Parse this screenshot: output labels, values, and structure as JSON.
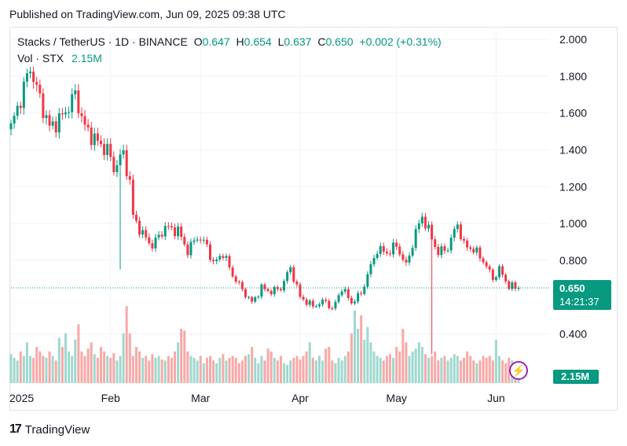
{
  "header": {
    "published": "Published on TradingView.com, Jun 09, 2025 09:38 UTC"
  },
  "legend": {
    "symbol": "Stacks / TetherUS · 1D · BINANCE",
    "o_label": "O",
    "o_value": "0.647",
    "h_label": "H",
    "h_value": "0.654",
    "l_label": "L",
    "l_value": "0.637",
    "c_label": "C",
    "c_value": "0.650",
    "change": "+0.002 (+0.31%)",
    "vol_label": "Vol · STX",
    "vol_value": "2.15M"
  },
  "price_badge": {
    "price": "0.650",
    "countdown": "14:21:37"
  },
  "vol_badge": "2.15M",
  "footer": {
    "brand": "TradingView"
  },
  "colors": {
    "up": "#089981",
    "down": "#f23645",
    "up_vol": "#9fd8cf",
    "down_vol": "#f7a9a7"
  },
  "chart_data": {
    "type": "candlestick",
    "title": "Stacks / TetherUS · 1D · BINANCE",
    "y_ticks": [
      "2.000",
      "1.800",
      "1.600",
      "1.400",
      "1.200",
      "1.000",
      "0.800",
      "0.400"
    ],
    "y_tick_values": [
      2.0,
      1.8,
      1.6,
      1.4,
      1.2,
      1.0,
      0.8,
      0.4
    ],
    "ylim": [
      0.206,
      2.0
    ],
    "x_ticks": [
      "2025",
      "Feb",
      "Mar",
      "Apr",
      "May",
      "Jun"
    ],
    "last_price": 0.65,
    "path_points": [
      [
        0,
        1.52
      ],
      [
        3,
        1.68
      ],
      [
        6,
        1.85
      ],
      [
        8,
        1.73
      ],
      [
        12,
        1.52
      ],
      [
        16,
        1.58
      ],
      [
        20,
        1.7
      ],
      [
        23,
        1.52
      ],
      [
        27,
        1.44
      ],
      [
        30,
        1.4
      ],
      [
        32,
        1.3
      ],
      [
        35,
        1.38
      ],
      [
        37,
        1.22
      ],
      [
        38,
        1.04
      ],
      [
        41,
        0.94
      ],
      [
        44,
        0.88
      ],
      [
        48,
        0.98
      ],
      [
        52,
        0.96
      ],
      [
        55,
        0.85
      ],
      [
        58,
        0.93
      ],
      [
        61,
        0.88
      ],
      [
        63,
        0.78
      ],
      [
        66,
        0.84
      ],
      [
        69,
        0.72
      ],
      [
        72,
        0.64
      ],
      [
        75,
        0.57
      ],
      [
        78,
        0.65
      ],
      [
        81,
        0.63
      ],
      [
        84,
        0.65
      ],
      [
        87,
        0.76
      ],
      [
        90,
        0.6
      ],
      [
        94,
        0.55
      ],
      [
        98,
        0.58
      ],
      [
        100,
        0.53
      ],
      [
        103,
        0.65
      ],
      [
        106,
        0.57
      ],
      [
        109,
        0.62
      ],
      [
        111,
        0.72
      ],
      [
        114,
        0.86
      ],
      [
        117,
        0.84
      ],
      [
        120,
        0.88
      ],
      [
        123,
        0.77
      ],
      [
        126,
        0.95
      ],
      [
        128,
        1.04
      ],
      [
        130,
        0.96
      ],
      [
        133,
        0.84
      ],
      [
        136,
        0.87
      ],
      [
        139,
        1.0
      ],
      [
        141,
        0.88
      ],
      [
        144,
        0.86
      ],
      [
        147,
        0.8
      ],
      [
        150,
        0.7
      ],
      [
        152,
        0.75
      ],
      [
        155,
        0.66
      ],
      [
        158,
        0.65
      ]
    ],
    "spikes": [
      {
        "day": 34,
        "low": 0.75
      },
      {
        "day": 131,
        "low": 0.29
      }
    ],
    "volume": {
      "max_label": "2.15M",
      "values": [
        0.32,
        0.28,
        0.25,
        0.35,
        0.3,
        0.45,
        0.3,
        0.28,
        0.4,
        0.35,
        0.3,
        0.28,
        0.35,
        0.3,
        0.25,
        0.5,
        0.4,
        0.55,
        0.35,
        0.3,
        0.48,
        0.65,
        0.35,
        0.3,
        0.38,
        0.45,
        0.32,
        0.28,
        0.4,
        0.35,
        0.3,
        0.28,
        0.33,
        0.25,
        0.3,
        0.55,
        0.85,
        0.55,
        0.3,
        0.4,
        0.35,
        0.28,
        0.3,
        0.25,
        0.32,
        0.28,
        0.3,
        0.26,
        0.25,
        0.3,
        0.28,
        0.35,
        0.45,
        0.6,
        0.58,
        0.35,
        0.3,
        0.28,
        0.25,
        0.3,
        0.22,
        0.28,
        0.3,
        0.25,
        0.22,
        0.28,
        0.32,
        0.25,
        0.28,
        0.3,
        0.28,
        0.22,
        0.25,
        0.3,
        0.32,
        0.4,
        0.28,
        0.22,
        0.3,
        0.25,
        0.38,
        0.35,
        0.28,
        0.25,
        0.3,
        0.22,
        0.2,
        0.25,
        0.28,
        0.3,
        0.26,
        0.3,
        0.35,
        0.45,
        0.28,
        0.25,
        0.3,
        0.25,
        0.38,
        0.4,
        0.25,
        0.22,
        0.28,
        0.25,
        0.3,
        0.35,
        0.55,
        0.8,
        0.6,
        0.75,
        0.48,
        0.62,
        0.45,
        0.35,
        0.3,
        0.28,
        0.25,
        0.3,
        0.32,
        0.28,
        0.4,
        0.35,
        0.6,
        0.45,
        0.3,
        0.35,
        0.38,
        0.45,
        0.4,
        0.32,
        0.28,
        0.3,
        0.35,
        0.25,
        0.28,
        0.3,
        0.25,
        0.28,
        0.32,
        0.3,
        0.25,
        0.28,
        0.35,
        0.3,
        0.25,
        0.22,
        0.25,
        0.3,
        0.28,
        0.3,
        0.25,
        0.48,
        0.3,
        0.25,
        0.22,
        0.28,
        0.25,
        0.2,
        0.18
      ]
    }
  }
}
